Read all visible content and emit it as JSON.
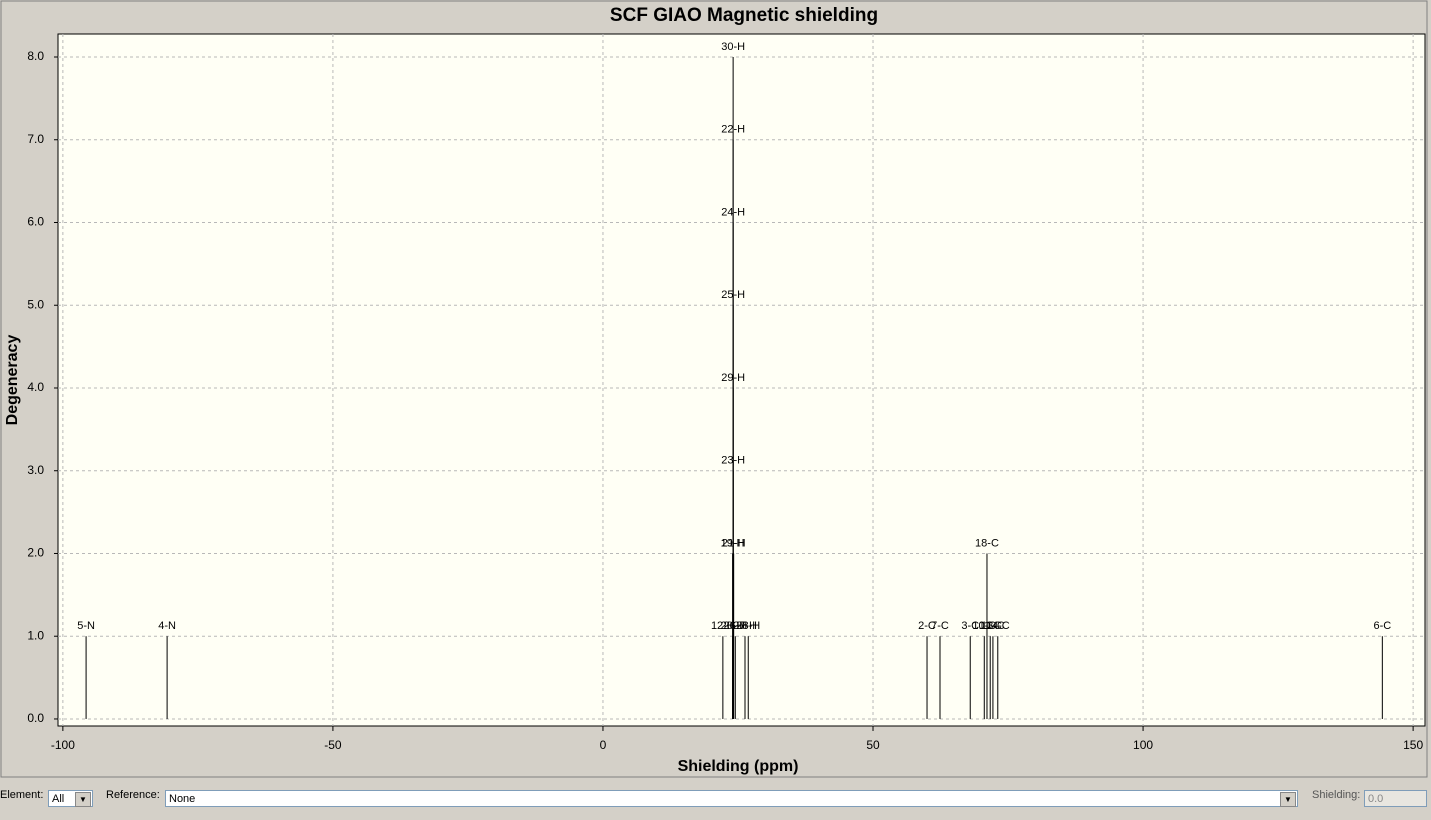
{
  "chart_data": {
    "type": "stem",
    "title": "SCF GIAO Magnetic shielding",
    "xlabel": "Shielding (ppm)",
    "ylabel": "Degeneracy",
    "x": [
      -95.7,
      -80.7,
      22.2,
      24.0,
      24.5,
      26.3,
      26.9,
      24.0,
      24.2,
      24.1,
      24.1,
      24.1,
      24.1,
      24.1,
      24.1,
      60.0,
      62.4,
      68.0,
      70.6,
      71.1,
      71.7,
      72.2,
      73.1,
      144.3
    ],
    "values": [
      1,
      1,
      1,
      1,
      1,
      1,
      1,
      2,
      2,
      3,
      4,
      5,
      6,
      7,
      8,
      1,
      1,
      1,
      1,
      2,
      1,
      1,
      1,
      1
    ],
    "labels": [
      "5-N",
      "4-N",
      "12-H",
      "20-H",
      "26-H",
      "27-H",
      "28-H",
      "19-H",
      "21-H",
      "23-H",
      "29-H",
      "25-H",
      "24-H",
      "22-H",
      "30-H",
      "2-C",
      "7-C",
      "3-C",
      "10-C",
      "18-C",
      "11-C",
      "13-C",
      "14-C",
      "6-C"
    ],
    "color": "#000000",
    "xlim": [
      -100.9,
      152.2
    ],
    "xticks": [
      -100,
      -50,
      0,
      50,
      100,
      150
    ],
    "ylim": [
      -0.085,
      8.278
    ],
    "yticks": [
      {
        "value": 0,
        "label": "0.0"
      },
      {
        "value": 1,
        "label": "1.0"
      },
      {
        "value": 2,
        "label": "2.0"
      },
      {
        "value": 3,
        "label": "3.0"
      },
      {
        "value": 4,
        "label": "4.0"
      },
      {
        "value": 5,
        "label": "5.0"
      },
      {
        "value": 6,
        "label": "6.0"
      },
      {
        "value": 7,
        "label": "7.0"
      },
      {
        "value": 8,
        "label": "8.0"
      }
    ],
    "grid": true
  },
  "controls": {
    "element_label": "Element:",
    "element_value": "All",
    "reference_label": "Reference:",
    "reference_value": "None",
    "shielding_label": "Shielding:",
    "shielding_value": "0.0"
  }
}
